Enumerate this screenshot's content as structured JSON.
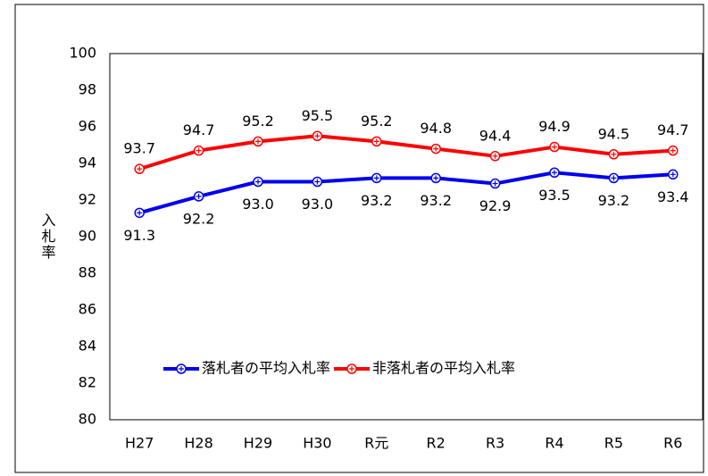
{
  "chart_data": {
    "type": "line",
    "y_label": "入札率",
    "categories": [
      "H27",
      "H28",
      "H29",
      "H30",
      "R元",
      "R2",
      "R3",
      "R4",
      "R5",
      "R6"
    ],
    "series": [
      {
        "name": "落札者の平均入札率",
        "color": "#0000ee",
        "values": [
          91.3,
          92.2,
          93.0,
          93.0,
          93.2,
          93.2,
          92.9,
          93.5,
          93.2,
          93.4
        ],
        "value_labels": [
          "91.3",
          "92.2",
          "93.0",
          "93.0",
          "93.2",
          "93.2",
          "92.9",
          "93.5",
          "93.2",
          "93.4"
        ],
        "label_position": "below"
      },
      {
        "name": "非落札者の平均入札率",
        "color": "#ff0000",
        "values": [
          93.7,
          94.7,
          95.2,
          95.5,
          95.2,
          94.8,
          94.4,
          94.9,
          94.5,
          94.7
        ],
        "label_position": "above"
      }
    ],
    "ylim": [
      80,
      100
    ],
    "yticks": [
      80,
      82,
      84,
      86,
      88,
      90,
      92,
      94,
      96,
      98,
      100
    ],
    "grid": false,
    "legend": "lower center"
  }
}
